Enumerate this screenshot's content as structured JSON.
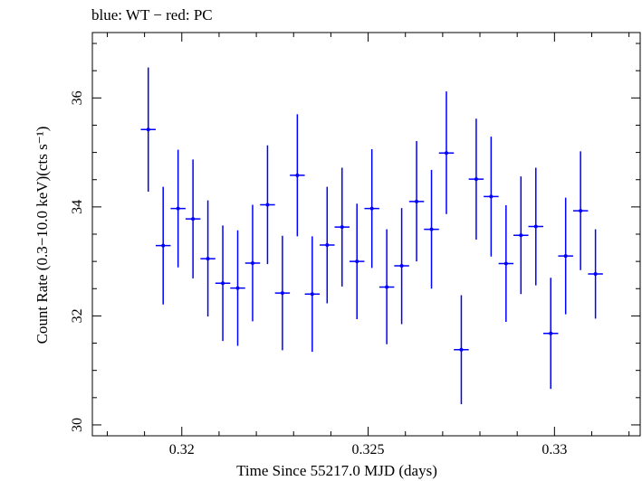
{
  "chart_data": {
    "type": "scatter",
    "title": "blue: WT − red: PC",
    "xlabel": "Time Since 55217.0 MJD (days)",
    "ylabel": "Count Rate (0.3−10.0 keV)(cts s⁻¹)",
    "xlim": [
      0.3176,
      0.3323
    ],
    "ylim": [
      29.8,
      37.2
    ],
    "xticks": [
      {
        "value": 0.32,
        "label": "0.32"
      },
      {
        "value": 0.325,
        "label": "0.325"
      },
      {
        "value": 0.33,
        "label": "0.33"
      }
    ],
    "yticks": [
      {
        "value": 30,
        "label": "30"
      },
      {
        "value": 32,
        "label": "32"
      },
      {
        "value": 34,
        "label": "34"
      },
      {
        "value": 36,
        "label": "36"
      }
    ],
    "x_minor_step": 0.001,
    "y_minor_step": 0.5,
    "x_half_width": 0.0002,
    "grid": false,
    "series": [
      {
        "color": "#0000ff",
        "points": [
          {
            "x": 0.3191,
            "y": 35.42,
            "ylo": 34.28,
            "yhi": 36.56
          },
          {
            "x": 0.3195,
            "y": 33.29,
            "ylo": 32.21,
            "yhi": 34.37
          },
          {
            "x": 0.3199,
            "y": 33.97,
            "ylo": 32.89,
            "yhi": 35.05
          },
          {
            "x": 0.3203,
            "y": 33.78,
            "ylo": 32.69,
            "yhi": 34.87
          },
          {
            "x": 0.3207,
            "y": 33.05,
            "ylo": 31.99,
            "yhi": 34.12
          },
          {
            "x": 0.3211,
            "y": 32.6,
            "ylo": 31.54,
            "yhi": 33.66
          },
          {
            "x": 0.3215,
            "y": 32.51,
            "ylo": 31.45,
            "yhi": 33.57
          },
          {
            "x": 0.3219,
            "y": 32.97,
            "ylo": 31.9,
            "yhi": 34.04
          },
          {
            "x": 0.3223,
            "y": 34.04,
            "ylo": 32.95,
            "yhi": 35.13
          },
          {
            "x": 0.3227,
            "y": 32.42,
            "ylo": 31.37,
            "yhi": 33.47
          },
          {
            "x": 0.3231,
            "y": 34.58,
            "ylo": 33.46,
            "yhi": 35.7
          },
          {
            "x": 0.3235,
            "y": 32.4,
            "ylo": 31.34,
            "yhi": 33.46
          },
          {
            "x": 0.3239,
            "y": 33.3,
            "ylo": 32.23,
            "yhi": 34.37
          },
          {
            "x": 0.3243,
            "y": 33.63,
            "ylo": 32.54,
            "yhi": 34.72
          },
          {
            "x": 0.3247,
            "y": 33.0,
            "ylo": 31.94,
            "yhi": 34.06
          },
          {
            "x": 0.3251,
            "y": 33.97,
            "ylo": 32.88,
            "yhi": 35.06
          },
          {
            "x": 0.3255,
            "y": 32.53,
            "ylo": 31.48,
            "yhi": 33.59
          },
          {
            "x": 0.3259,
            "y": 32.92,
            "ylo": 31.85,
            "yhi": 33.98
          },
          {
            "x": 0.3263,
            "y": 34.1,
            "ylo": 33.0,
            "yhi": 35.21
          },
          {
            "x": 0.3267,
            "y": 33.59,
            "ylo": 32.5,
            "yhi": 34.68
          },
          {
            "x": 0.3271,
            "y": 34.99,
            "ylo": 33.87,
            "yhi": 36.12
          },
          {
            "x": 0.3275,
            "y": 31.38,
            "ylo": 30.38,
            "yhi": 32.38
          },
          {
            "x": 0.3279,
            "y": 34.51,
            "ylo": 33.4,
            "yhi": 35.62
          },
          {
            "x": 0.3283,
            "y": 34.19,
            "ylo": 33.09,
            "yhi": 35.29
          },
          {
            "x": 0.3287,
            "y": 32.96,
            "ylo": 31.89,
            "yhi": 34.03
          },
          {
            "x": 0.3291,
            "y": 33.48,
            "ylo": 32.4,
            "yhi": 34.56
          },
          {
            "x": 0.3295,
            "y": 33.64,
            "ylo": 32.56,
            "yhi": 34.72
          },
          {
            "x": 0.3299,
            "y": 31.68,
            "ylo": 30.66,
            "yhi": 32.7
          },
          {
            "x": 0.3303,
            "y": 33.1,
            "ylo": 32.03,
            "yhi": 34.17
          },
          {
            "x": 0.3307,
            "y": 33.93,
            "ylo": 32.84,
            "yhi": 35.02
          },
          {
            "x": 0.3311,
            "y": 32.77,
            "ylo": 31.95,
            "yhi": 33.59
          }
        ]
      }
    ]
  }
}
